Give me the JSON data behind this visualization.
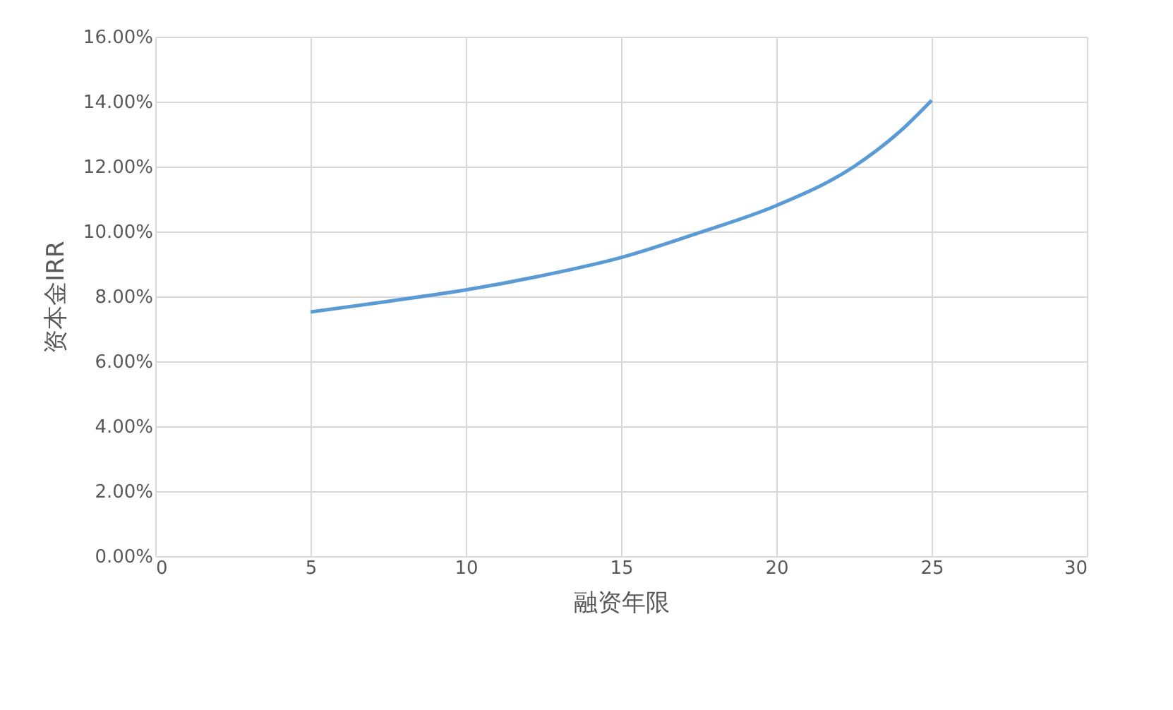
{
  "chart_data": {
    "type": "line",
    "xlabel": "融资年限",
    "ylabel": "资本金IRR",
    "x": [
      5,
      7.5,
      10,
      12.5,
      15,
      17.5,
      20,
      22.5,
      24,
      25
    ],
    "series": [
      {
        "color": "#5b9bd5",
        "values": [
          7.52,
          7.85,
          8.2,
          8.65,
          9.2,
          9.96,
          10.8,
          12.0,
          13.1,
          14.04
        ]
      }
    ],
    "xlim": [
      0,
      30
    ],
    "xticks": [
      0,
      5,
      10,
      15,
      20,
      25,
      30
    ],
    "ylim": [
      0,
      16
    ],
    "yticks": [
      {
        "value": 0,
        "label": "0.00%"
      },
      {
        "value": 2,
        "label": "2.00%"
      },
      {
        "value": 4,
        "label": "4.00%"
      },
      {
        "value": 6,
        "label": "6.00%"
      },
      {
        "value": 8,
        "label": "8.00%"
      },
      {
        "value": 10,
        "label": "10.00%"
      },
      {
        "value": 12,
        "label": "12.00%"
      },
      {
        "value": 14,
        "label": "14.00%"
      },
      {
        "value": 16,
        "label": "16.00%"
      }
    ],
    "grid": true,
    "marker": "none",
    "line_style": "solid"
  }
}
